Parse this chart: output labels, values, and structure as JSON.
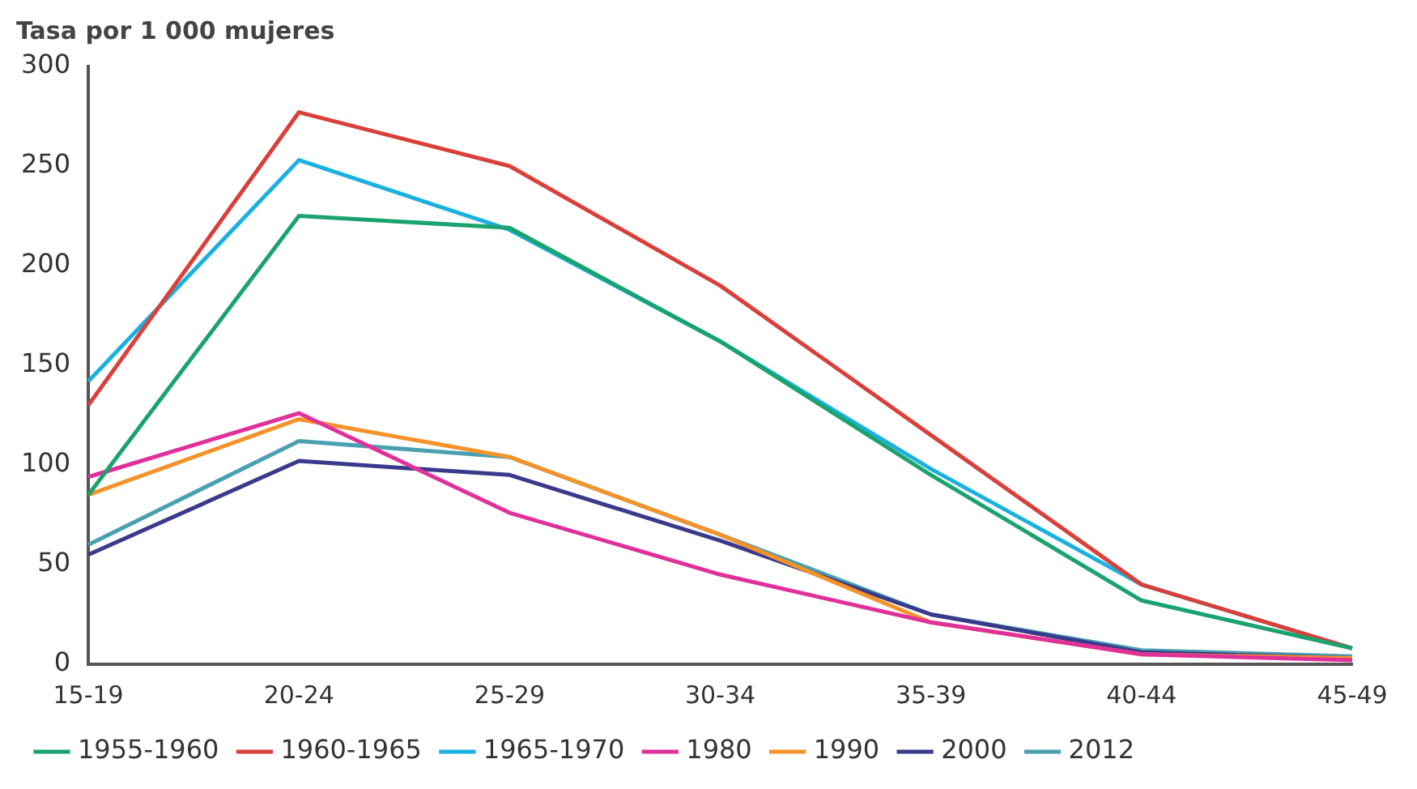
{
  "chart_data": {
    "type": "line",
    "ylabel": "Tasa por 1 000 mujeres",
    "categories": [
      "15-19",
      "20-24",
      "25-29",
      "30-34",
      "35-39",
      "40-44",
      "45-49"
    ],
    "series": [
      {
        "name": "1955-1960",
        "color": "#1aa36e",
        "values": [
          85,
          225,
          219,
          162,
          95,
          32,
          8
        ]
      },
      {
        "name": "1960-1965",
        "color": "#d9403a",
        "values": [
          130,
          277,
          250,
          190,
          115,
          40,
          8
        ]
      },
      {
        "name": "1965-1970",
        "color": "#1ab0e0",
        "values": [
          142,
          253,
          218,
          162,
          98,
          40,
          8
        ]
      },
      {
        "name": "1980",
        "color": "#e0309a",
        "values": [
          94,
          126,
          76,
          45,
          21,
          5,
          2
        ]
      },
      {
        "name": "1990",
        "color": "#f5922a",
        "values": [
          85,
          123,
          104,
          65,
          21,
          5,
          3
        ]
      },
      {
        "name": "2000",
        "color": "#3a3a8c",
        "values": [
          55,
          102,
          95,
          62,
          25,
          6,
          3
        ]
      },
      {
        "name": "2012",
        "color": "#4aa0b0",
        "values": [
          60,
          112,
          104,
          65,
          25,
          7,
          4
        ]
      }
    ],
    "ylim": [
      0,
      300
    ],
    "yticks": [
      0,
      50,
      100,
      150,
      200,
      250,
      300
    ],
    "grid": false,
    "legend": "bottom",
    "marker": "none",
    "line_style": "solid"
  }
}
